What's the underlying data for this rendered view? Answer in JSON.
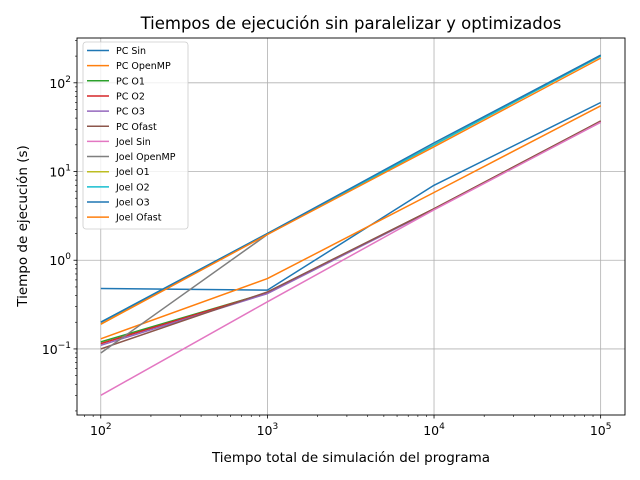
{
  "chart_data": {
    "type": "line",
    "title": "Tiempos de ejecución sin paralelizar y optimizados",
    "xlabel": "Tiempo total de simulación del programa",
    "ylabel": "Tiempo de ejecución (s)",
    "xscale": "log",
    "yscale": "log",
    "xlim": [
      72,
      140000
    ],
    "ylim": [
      0.018,
      320
    ],
    "grid": true,
    "legend_position": "top-left",
    "x": [
      100,
      1000,
      10000,
      100000
    ],
    "xticks": [
      {
        "value": 100,
        "base": "10",
        "exp": "2"
      },
      {
        "value": 1000,
        "base": "10",
        "exp": "3"
      },
      {
        "value": 10000,
        "base": "10",
        "exp": "4"
      },
      {
        "value": 100000,
        "base": "10",
        "exp": "5"
      }
    ],
    "yticks": [
      {
        "value": 0.1,
        "base": "10",
        "exp": "−1"
      },
      {
        "value": 1,
        "base": "10",
        "exp": "0"
      },
      {
        "value": 10,
        "base": "10",
        "exp": "1"
      },
      {
        "value": 100,
        "base": "10",
        "exp": "2"
      }
    ],
    "series": [
      {
        "name": "PC Sin",
        "color": "#1f77b4",
        "values": [
          0.48,
          0.46,
          7.0,
          60
        ]
      },
      {
        "name": "PC OpenMP",
        "color": "#ff7f0e",
        "values": [
          0.13,
          0.62,
          5.8,
          55
        ]
      },
      {
        "name": "PC O1",
        "color": "#2ca02c",
        "values": [
          0.12,
          0.43,
          3.8,
          37
        ]
      },
      {
        "name": "PC O2",
        "color": "#d62728",
        "values": [
          0.115,
          0.43,
          3.8,
          37
        ]
      },
      {
        "name": "PC O3",
        "color": "#9467bd",
        "values": [
          0.11,
          0.42,
          3.75,
          36
        ]
      },
      {
        "name": "PC Ofast",
        "color": "#8c564b",
        "values": [
          0.1,
          0.44,
          3.8,
          37
        ]
      },
      {
        "name": "Joel Sin",
        "color": "#e377c2",
        "values": [
          0.03,
          0.34,
          3.7,
          36
        ]
      },
      {
        "name": "Joel OpenMP",
        "color": "#7f7f7f",
        "values": [
          0.09,
          1.95,
          20,
          205
        ]
      },
      {
        "name": "Joel O1",
        "color": "#bcbd22",
        "values": [
          0.19,
          2.0,
          20,
          200
        ]
      },
      {
        "name": "Joel O2",
        "color": "#17becf",
        "values": [
          0.2,
          2.0,
          20,
          200
        ]
      },
      {
        "name": "Joel O3",
        "color": "#1f77b4",
        "values": [
          0.2,
          2.0,
          21,
          205
        ]
      },
      {
        "name": "Joel Ofast",
        "color": "#ff7f0e",
        "values": [
          0.19,
          1.95,
          19,
          190
        ]
      }
    ]
  }
}
